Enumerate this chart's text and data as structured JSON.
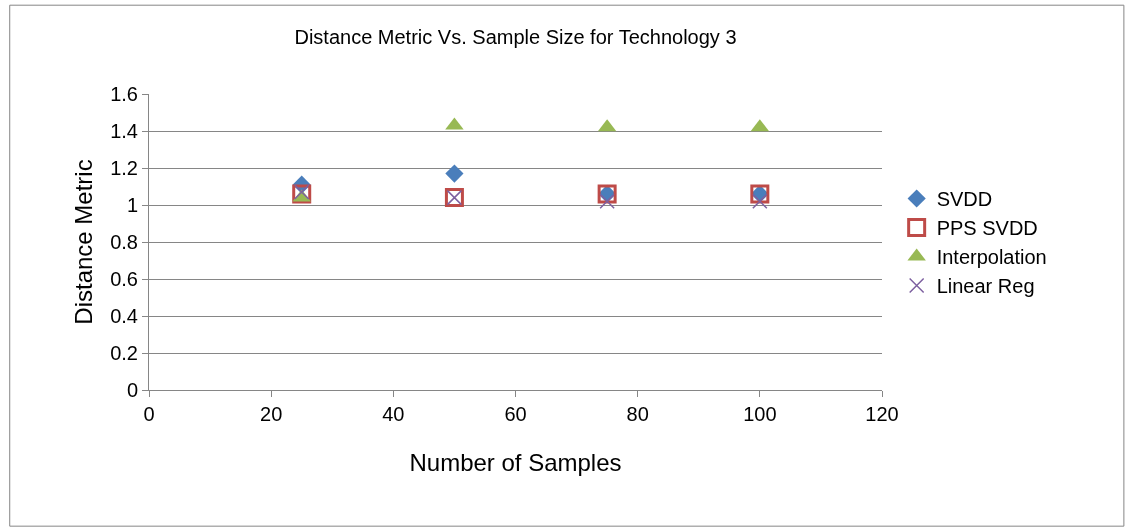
{
  "chart_data": {
    "type": "scatter",
    "title": "Distance Metric Vs. Sample Size for Technology 3",
    "xlabel": "Number of Samples",
    "ylabel": "Distance Metric",
    "x": [
      25,
      50,
      75,
      100
    ],
    "series": [
      {
        "name": "SVDD",
        "color": "#4a7ebb",
        "marker": "diamond",
        "values": [
          1.11,
          1.17,
          1.06,
          1.06
        ]
      },
      {
        "name": "PPS SVDD",
        "color": "#be4b48",
        "marker": "square",
        "values": [
          1.06,
          1.04,
          1.06,
          1.06
        ]
      },
      {
        "name": "Interpolation",
        "color": "#98b954",
        "marker": "triangle",
        "values": [
          1.04,
          1.43,
          1.42,
          1.42
        ]
      },
      {
        "name": "Linear Reg",
        "color": "#7d60a0",
        "marker": "cross",
        "values": [
          1.07,
          1.04,
          1.02,
          1.02
        ]
      }
    ],
    "xlim": [
      0,
      120
    ],
    "xticks": [
      0,
      20,
      40,
      60,
      80,
      100,
      120
    ],
    "ylim": [
      0,
      1.6
    ],
    "yticks": [
      0,
      0.2,
      0.4,
      0.6,
      0.8,
      1,
      1.2,
      1.4,
      1.6
    ],
    "grid": "y",
    "legend": "right"
  }
}
